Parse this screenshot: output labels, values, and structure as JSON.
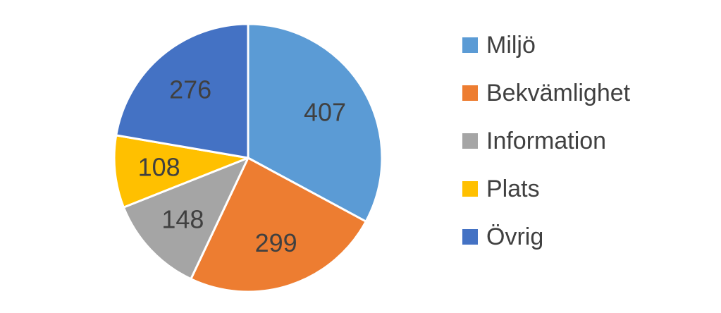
{
  "chart_data": {
    "type": "pie",
    "title": "",
    "categories": [
      "Miljö",
      "Bekvämlighet",
      "Information",
      "Plats",
      "Övrig"
    ],
    "values": [
      407,
      299,
      148,
      108,
      276
    ],
    "colors": [
      "#5b9bd5",
      "#ed7d31",
      "#a5a5a5",
      "#ffc000",
      "#4472c4"
    ],
    "data_labels": [
      "407",
      "299",
      "148",
      "108",
      "276"
    ],
    "start_angle_deg": 0,
    "direction": "clockwise",
    "legend_placement": "right"
  },
  "legend": {
    "items": [
      {
        "label": "Miljö",
        "color": "#5b9bd5"
      },
      {
        "label": "Bekvämlighet",
        "color": "#ed7d31"
      },
      {
        "label": "Information",
        "color": "#a5a5a5"
      },
      {
        "label": "Plats",
        "color": "#ffc000"
      },
      {
        "label": "Övrig",
        "color": "#4472c4"
      }
    ]
  }
}
